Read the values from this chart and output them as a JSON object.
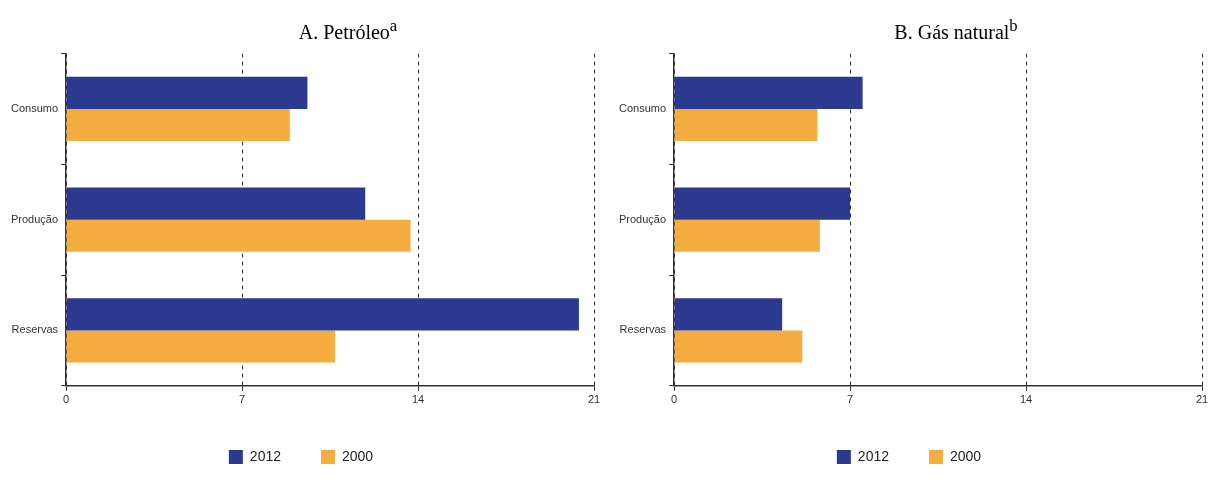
{
  "chart_data": [
    {
      "type": "bar",
      "title": "A. Petróleo$^{a}$",
      "orientation": "horizontal",
      "categories": [
        "Consumo",
        "Produção",
        "Reservas"
      ],
      "series": [
        {
          "name": "2012",
          "color": "#2b3990",
          "values": [
            9.6,
            11.9,
            20.4
          ]
        },
        {
          "name": "2000",
          "color": "#f5ad3f",
          "values": [
            8.9,
            13.7,
            10.7
          ]
        }
      ],
      "xlim": [
        0,
        21
      ],
      "xticks": [
        0,
        7,
        14,
        21
      ],
      "grid": "x",
      "legend": "bottom"
    },
    {
      "type": "bar",
      "title": "B. Gás natural$^{b}$",
      "orientation": "horizontal",
      "categories": [
        "Consumo",
        "Produção",
        "Reservas"
      ],
      "series": [
        {
          "name": "2012",
          "color": "#2b3990",
          "values": [
            7.5,
            7.0,
            4.3
          ]
        },
        {
          "name": "2000",
          "color": "#f5ad3f",
          "values": [
            5.7,
            5.8,
            5.1
          ]
        }
      ],
      "xlim": [
        0,
        21
      ],
      "xticks": [
        0,
        7,
        14,
        21
      ],
      "grid": "x",
      "legend": "bottom"
    }
  ]
}
